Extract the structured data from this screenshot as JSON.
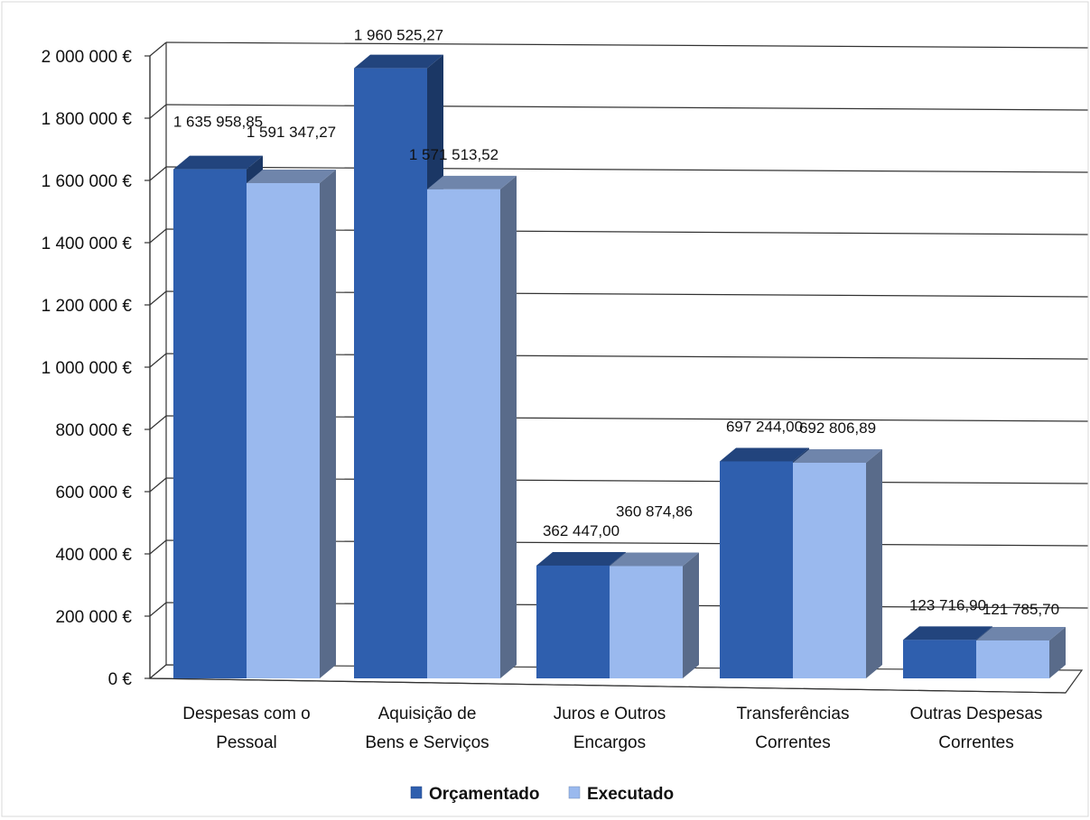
{
  "chart_data": {
    "type": "bar",
    "title": "",
    "xlabel": "",
    "ylabel": "",
    "categories": [
      [
        "Despesas com o",
        "Pessoal"
      ],
      [
        "Aquisição de",
        "Bens e Serviços"
      ],
      [
        "Juros e Outros",
        "Encargos"
      ],
      [
        "Transferências",
        "Correntes"
      ],
      [
        "Outras Despesas",
        "Correntes"
      ]
    ],
    "series": [
      {
        "name": "Orçamentado",
        "values": [
          1635958.85,
          1960525.27,
          362447.0,
          697244.0,
          123716.9
        ],
        "labels": [
          "1 635 958,85",
          "1 960 525,27",
          "362 447,00",
          "697 244,00",
          "123 716,90"
        ],
        "color": "#2f5fae"
      },
      {
        "name": "Executado",
        "values": [
          1591347.27,
          1571513.52,
          360874.86,
          692806.89,
          121785.7
        ],
        "labels": [
          "1 591 347,27",
          "1 571 513,52",
          "360 874,86",
          "692 806,89",
          "121 785,70"
        ],
        "color": "#9ab9ee"
      }
    ],
    "yticks": [
      0,
      200000,
      400000,
      600000,
      800000,
      1000000,
      1200000,
      1400000,
      1600000,
      1800000,
      2000000
    ],
    "ytick_labels": [
      "0 €",
      "200 000 €",
      "400 000 €",
      "600 000 €",
      "800 000 €",
      "1 000 000 €",
      "1 200 000 €",
      "1 400 000 €",
      "1 600 000 €",
      "1 800 000 €",
      "2 000 000 €"
    ],
    "ylim": [
      0,
      2000000
    ],
    "grid": true,
    "legend_position": "bottom",
    "style": "3d-column"
  }
}
